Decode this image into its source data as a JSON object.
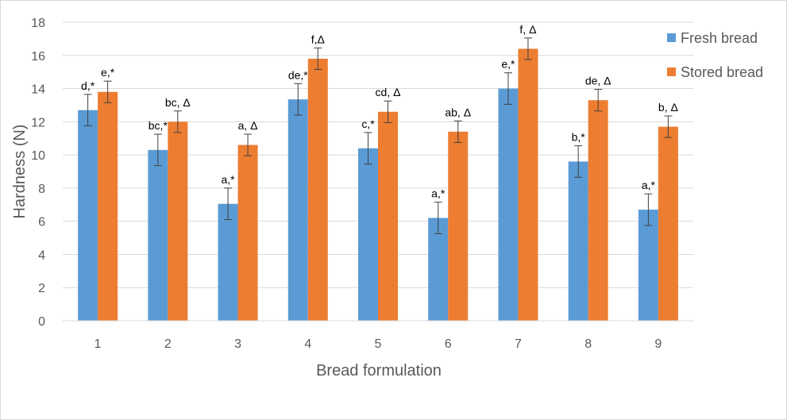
{
  "chart_data": {
    "type": "bar",
    "title": "",
    "xlabel": "Bread formulation",
    "ylabel": "Hardness (N)",
    "ylim": [
      0,
      18
    ],
    "yticks": [
      0,
      2,
      4,
      6,
      8,
      10,
      12,
      14,
      16,
      18
    ],
    "categories": [
      "1",
      "2",
      "3",
      "4",
      "5",
      "6",
      "7",
      "8",
      "9"
    ],
    "grid": true,
    "legend_position": "right",
    "series": [
      {
        "name": "Fresh bread",
        "color": "#5b9bd5",
        "values": [
          12.7,
          10.3,
          7.05,
          13.35,
          10.4,
          6.2,
          14.0,
          9.6,
          6.7
        ],
        "errors": [
          0.95,
          0.95,
          0.95,
          0.95,
          0.95,
          0.95,
          0.95,
          0.95,
          0.95
        ],
        "labels": [
          "d,*",
          "bc,*",
          "a,*",
          "de,*",
          "c,*",
          "a,*",
          "e,*",
          "b,*",
          "a,*"
        ]
      },
      {
        "name": "Stored bread",
        "color": "#ed7d31",
        "values": [
          13.8,
          12.0,
          10.6,
          15.8,
          12.6,
          11.4,
          16.4,
          13.3,
          11.7
        ],
        "errors": [
          0.65,
          0.65,
          0.65,
          0.65,
          0.65,
          0.65,
          0.65,
          0.65,
          0.65
        ],
        "labels": [
          "e,*",
          "bc, Δ",
          "a, Δ",
          "f,Δ",
          "cd, Δ",
          "ab, Δ",
          "f, Δ",
          "de, Δ",
          "b, Δ"
        ]
      }
    ]
  }
}
